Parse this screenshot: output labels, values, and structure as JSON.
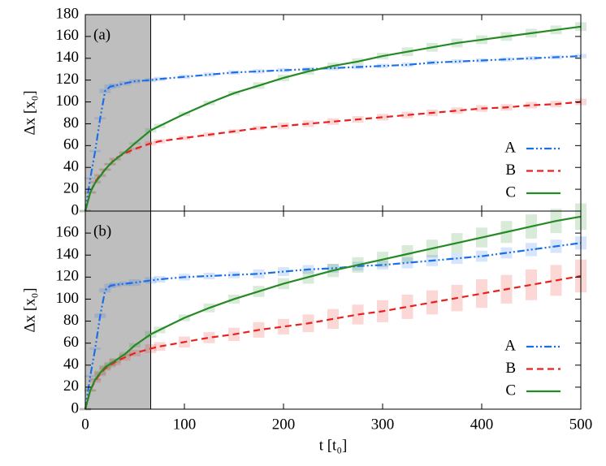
{
  "chart_data": [
    {
      "type": "line",
      "panel_label": "(a)",
      "ylabel": "Δx [x₀]",
      "x": [
        0,
        5,
        10,
        15,
        20,
        25,
        30,
        40,
        50,
        66,
        75,
        100,
        125,
        150,
        175,
        200,
        225,
        250,
        275,
        300,
        325,
        350,
        375,
        400,
        425,
        450,
        475,
        500
      ],
      "shaded_xrange": [
        0,
        66
      ],
      "xlim": [
        0,
        500
      ],
      "xticks": [
        0,
        100,
        200,
        300,
        400,
        500
      ],
      "ylim": [
        0,
        180
      ],
      "yticks": [
        0,
        20,
        40,
        60,
        80,
        100,
        120,
        140,
        160,
        180
      ],
      "legend": "lower right",
      "series": [
        {
          "name": "A",
          "color": "#1a6fe8",
          "style": "dashdot",
          "values": [
            0,
            30,
            55,
            85,
            110,
            114,
            115,
            117,
            119,
            120,
            121,
            123,
            125,
            127,
            128,
            129,
            130,
            131,
            132,
            133,
            134,
            136,
            137,
            138,
            139,
            140,
            141,
            142
          ],
          "error": [
            1,
            1,
            1,
            1,
            2,
            2,
            2,
            2,
            2,
            2,
            2,
            2,
            2,
            2,
            2,
            2,
            2,
            2,
            2,
            2,
            2,
            2,
            2,
            2,
            2,
            2,
            2,
            2
          ]
        },
        {
          "name": "B",
          "color": "#e8211e",
          "style": "dashed",
          "values": [
            0,
            17,
            27,
            33,
            38,
            43,
            48,
            53,
            57,
            62,
            64,
            67,
            70,
            73,
            76,
            78,
            80,
            82,
            84,
            86,
            88,
            90,
            92,
            94,
            95,
            97,
            98,
            100
          ],
          "error": [
            1,
            1,
            1,
            1,
            1,
            1,
            1,
            1,
            1,
            2,
            2,
            2,
            2,
            2,
            2,
            3,
            3,
            3,
            3,
            3,
            3,
            3,
            3,
            3,
            3,
            3,
            3,
            3
          ]
        },
        {
          "name": "C",
          "color": "#258a25",
          "style": "solid",
          "values": [
            0,
            17,
            26,
            32,
            38,
            43,
            47,
            54,
            62,
            74,
            78,
            89,
            99,
            108,
            115,
            122,
            128,
            133,
            137,
            142,
            146,
            150,
            154,
            157,
            160,
            163,
            166,
            169
          ],
          "error": [
            1,
            1,
            1,
            1,
            1,
            1,
            1,
            1,
            1,
            2,
            2,
            2,
            2,
            2,
            3,
            3,
            3,
            3,
            3,
            3,
            4,
            4,
            4,
            4,
            4,
            4,
            4,
            4
          ]
        }
      ]
    },
    {
      "type": "line",
      "panel_label": "(b)",
      "ylabel": "Δx [x₀]",
      "xlabel": "t [t₀]",
      "x": [
        0,
        5,
        10,
        15,
        20,
        25,
        30,
        40,
        50,
        66,
        75,
        100,
        125,
        150,
        175,
        200,
        225,
        250,
        275,
        300,
        325,
        350,
        375,
        400,
        425,
        450,
        475,
        500
      ],
      "shaded_xrange": [
        0,
        66
      ],
      "xlim": [
        0,
        500
      ],
      "xticks": [
        0,
        100,
        200,
        300,
        400,
        500
      ],
      "ylim": [
        0,
        180
      ],
      "yticks": [
        0,
        20,
        40,
        60,
        80,
        100,
        120,
        140,
        160
      ],
      "legend": "lower right",
      "series": [
        {
          "name": "A",
          "color": "#1a6fe8",
          "style": "dashdot",
          "values": [
            0,
            30,
            55,
            85,
            108,
            112,
            113,
            114,
            115,
            117,
            118,
            120,
            121,
            122,
            123,
            125,
            127,
            128,
            130,
            131,
            133,
            135,
            137,
            139,
            142,
            145,
            148,
            151
          ],
          "error": [
            1,
            1,
            1,
            2,
            2,
            2,
            2,
            2,
            3,
            3,
            3,
            3,
            3,
            3,
            4,
            4,
            4,
            4,
            4,
            4,
            5,
            5,
            5,
            5,
            5,
            6,
            6,
            6
          ]
        },
        {
          "name": "B",
          "color": "#e8211e",
          "style": "dashed",
          "values": [
            0,
            17,
            26,
            32,
            37,
            40,
            43,
            47,
            51,
            55,
            57,
            61,
            65,
            68,
            72,
            75,
            78,
            82,
            86,
            89,
            93,
            97,
            101,
            105,
            109,
            113,
            117,
            121
          ],
          "error": [
            1,
            1,
            2,
            2,
            2,
            2,
            3,
            3,
            3,
            4,
            4,
            5,
            5,
            6,
            7,
            7,
            8,
            9,
            9,
            10,
            11,
            11,
            12,
            13,
            13,
            14,
            14,
            15
          ]
        },
        {
          "name": "C",
          "color": "#258a25",
          "style": "solid",
          "values": [
            0,
            17,
            27,
            33,
            38,
            41,
            44,
            50,
            58,
            68,
            72,
            83,
            92,
            100,
            107,
            114,
            120,
            126,
            131,
            136,
            141,
            146,
            151,
            156,
            161,
            166,
            171,
            175
          ],
          "error": [
            1,
            1,
            1,
            2,
            2,
            2,
            2,
            2,
            2,
            3,
            3,
            3,
            4,
            4,
            5,
            5,
            6,
            6,
            7,
            7,
            8,
            8,
            9,
            9,
            10,
            11,
            11,
            12
          ]
        }
      ]
    }
  ]
}
